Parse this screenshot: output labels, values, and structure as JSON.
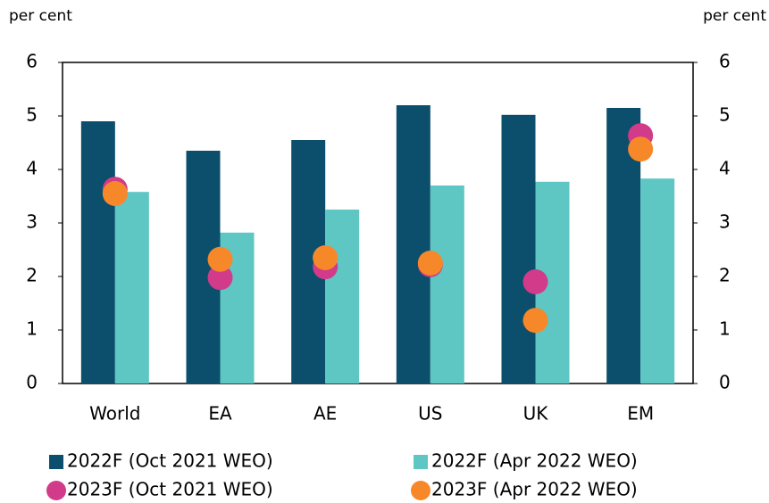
{
  "chart_data": {
    "type": "bar",
    "y_label": "per cent",
    "y2_label": "per cent",
    "categories": [
      "World",
      "EA",
      "AE",
      "US",
      "UK",
      "EM"
    ],
    "series": [
      {
        "name": "2022F (Oct 2021 WEO)",
        "type": "bar",
        "color": "#0b4f6c",
        "values": [
          4.9,
          4.35,
          4.55,
          5.2,
          5.02,
          5.15
        ]
      },
      {
        "name": "2022F (Apr 2022 WEO)",
        "type": "bar",
        "color": "#5ec6c3",
        "values": [
          3.58,
          2.82,
          3.25,
          3.7,
          3.77,
          3.83
        ]
      },
      {
        "name": "2023F (Oct 2021 WEO)",
        "type": "scatter",
        "color": "#d13b8a",
        "values": [
          3.63,
          1.98,
          2.18,
          2.22,
          1.9,
          4.63
        ]
      },
      {
        "name": "2023F (Apr 2022 WEO)",
        "type": "scatter",
        "color": "#f7882a",
        "values": [
          3.55,
          2.32,
          2.35,
          2.25,
          1.18,
          4.38
        ]
      }
    ],
    "ylim": [
      0,
      6
    ],
    "yticks": [
      0,
      1,
      2,
      3,
      4,
      5,
      6
    ],
    "y2lim": [
      0,
      6
    ],
    "y2ticks": [
      0,
      1,
      2,
      3,
      4,
      5,
      6
    ]
  }
}
